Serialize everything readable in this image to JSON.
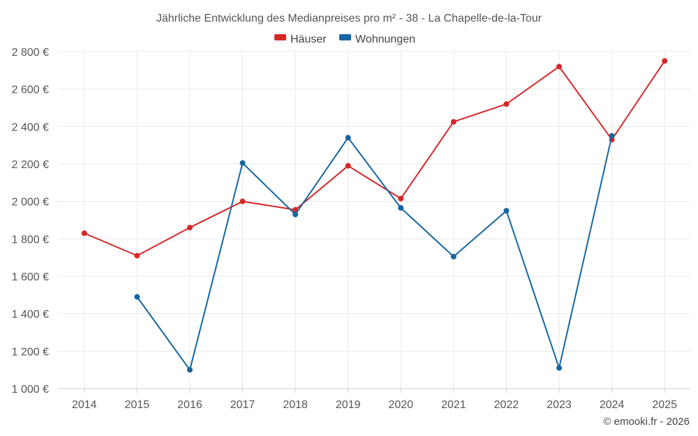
{
  "chart_data": {
    "type": "line",
    "title": "Jährliche Entwicklung des Medianpreises pro m² - 38 - La Chapelle-de-la-Tour",
    "categories": [
      "2014",
      "2015",
      "2016",
      "2017",
      "2018",
      "2019",
      "2020",
      "2021",
      "2022",
      "2023",
      "2024",
      "2025"
    ],
    "ylim": [
      1000,
      2800
    ],
    "yticks": [
      1000,
      1200,
      1400,
      1600,
      1800,
      2000,
      2200,
      2400,
      2600,
      2800
    ],
    "ytick_labels": [
      "1 000 €",
      "1 200 €",
      "1 400 €",
      "1 600 €",
      "1 800 €",
      "2 000 €",
      "2 200 €",
      "2 400 €",
      "2 600 €",
      "2 800 €"
    ],
    "legend_position": "top-center",
    "grid": true,
    "series": [
      {
        "name": "Häuser",
        "color": "#d62728",
        "values": [
          1830,
          1710,
          1860,
          2000,
          1955,
          2190,
          2015,
          2425,
          2520,
          2720,
          2330,
          2750
        ]
      },
      {
        "name": "Wohnungen",
        "color": "#1565a0",
        "values": [
          null,
          1490,
          1100,
          2205,
          1930,
          2340,
          1965,
          1705,
          1950,
          1110,
          2350,
          null
        ]
      }
    ]
  },
  "credit": "© emooki.fr - 2026"
}
